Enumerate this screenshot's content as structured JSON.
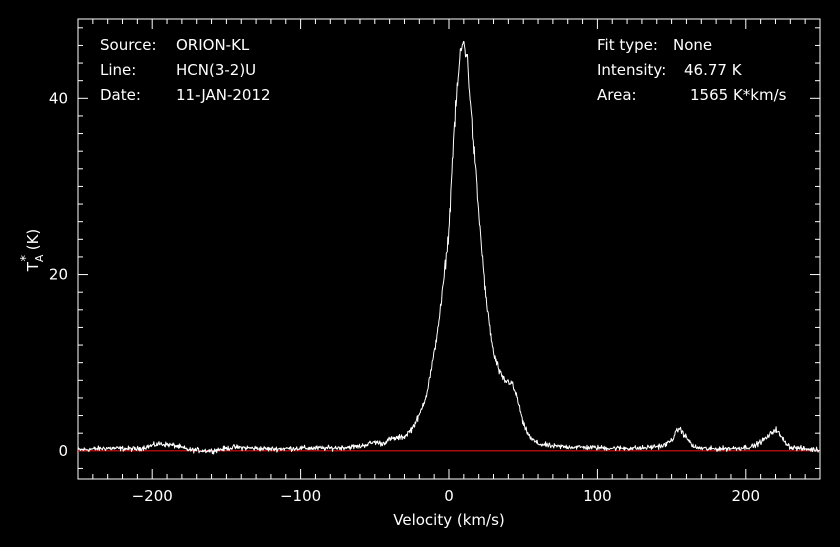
{
  "chart_data": {
    "type": "line",
    "xlabel": "Velocity (km/s)",
    "ylabel": {
      "base": "T",
      "sup": "*",
      "sub": "A",
      "unit": " (K)"
    },
    "xlim": [
      -250,
      250
    ],
    "ylim": [
      -3.2,
      49
    ],
    "xticks": [
      -200,
      -100,
      0,
      100,
      200
    ],
    "xtick_labels": [
      "−200",
      "−100",
      "0",
      "100",
      "200"
    ],
    "yticks": [
      0,
      20,
      40
    ],
    "ytick_labels": [
      "0",
      "20",
      "40"
    ],
    "grid": false,
    "baseline": {
      "y": 0,
      "color": "#e01010"
    },
    "series": [
      {
        "color": "#ffffff",
        "x": [
          -250,
          -230,
          -210,
          -195,
          -185,
          -175,
          -160,
          -145,
          -120,
          -100,
          -80,
          -60,
          -50,
          -45,
          -40,
          -30,
          -25,
          -20,
          -15,
          -10,
          -5,
          0,
          3,
          6,
          8,
          10,
          12,
          14,
          16,
          20,
          25,
          30,
          35,
          38,
          42,
          46,
          50,
          55,
          60,
          70,
          90,
          110,
          130,
          145,
          150,
          155,
          160,
          165,
          175,
          195,
          205,
          210,
          215,
          220,
          225,
          230,
          240,
          250
        ],
        "y": [
          0.1,
          0.3,
          0.2,
          0.8,
          0.6,
          0.1,
          0.0,
          0.4,
          0.2,
          0.3,
          0.3,
          0.5,
          1.0,
          0.8,
          1.3,
          1.6,
          2.5,
          4.0,
          6.5,
          11.0,
          17.0,
          25.0,
          35.0,
          42.0,
          45.5,
          46.3,
          45.0,
          41.0,
          36.0,
          27.0,
          17.0,
          11.0,
          8.5,
          7.9,
          7.8,
          6.0,
          3.0,
          1.4,
          0.8,
          0.5,
          0.4,
          0.3,
          0.3,
          0.6,
          1.2,
          2.6,
          1.5,
          0.4,
          0.2,
          0.3,
          0.5,
          1.0,
          1.6,
          2.5,
          1.3,
          0.4,
          0.2,
          0.1
        ]
      }
    ]
  },
  "info": {
    "source_label": "Source:",
    "source_value": "ORION-KL",
    "line_label": "Line:",
    "line_value": "HCN(3-2)U",
    "date_label": "Date:",
    "date_value": "11-JAN-2012",
    "fit_label": "Fit type:",
    "fit_value": "None",
    "intensity_label": "Intensity:",
    "intensity_value": "46.77 K",
    "area_label": "Area:",
    "area_value": "1565 K*km/s"
  }
}
